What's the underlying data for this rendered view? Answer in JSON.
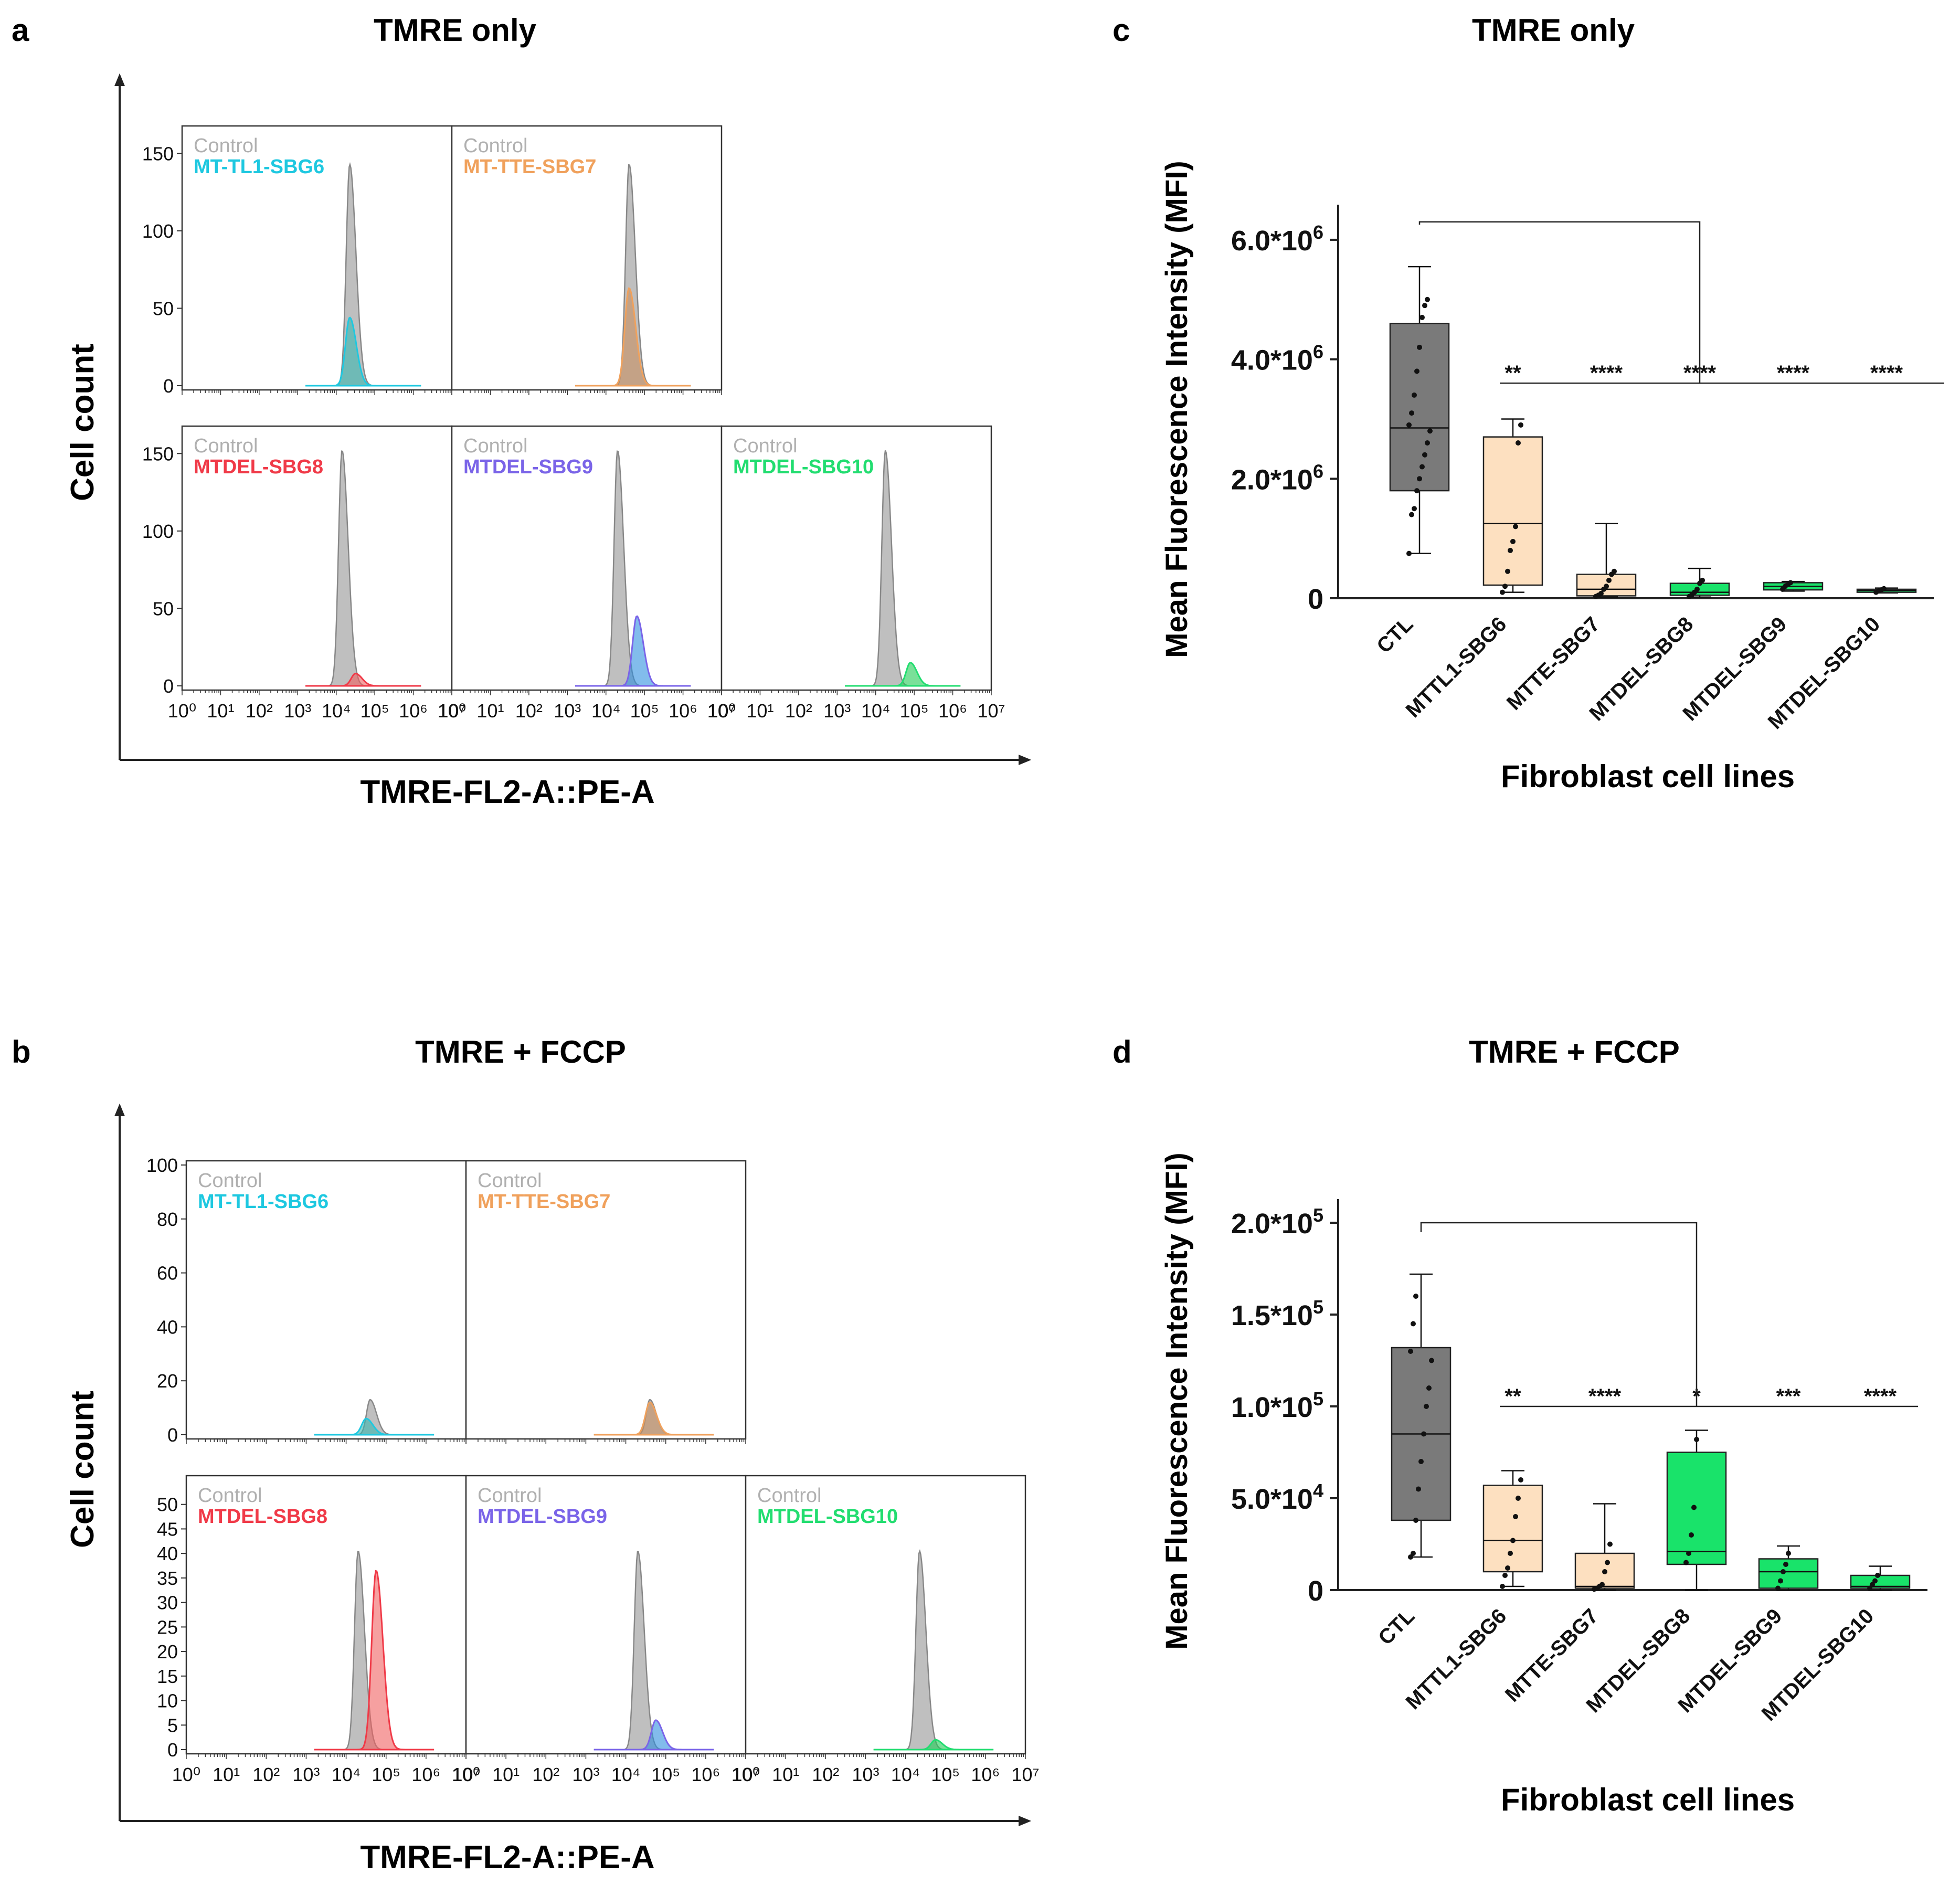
{
  "figure": {
    "panel_a": {
      "letter": "a",
      "title": "TMRE only"
    },
    "panel_b": {
      "letter": "b",
      "title": "TMRE + FCCP"
    },
    "panel_c": {
      "letter": "c",
      "title": "TMRE only"
    },
    "panel_d": {
      "letter": "d",
      "title": "TMRE + FCCP"
    },
    "hist_ylabel": "Cell count",
    "hist_xlabel": "TMRE-FL2-A::PE-A",
    "control_label": "Control",
    "box_ylabel": "Mean Fluorescence Intensity (MFI)",
    "box_xlabel": "Fibroblast cell lines"
  },
  "colors": {
    "control": "#a9a9a9",
    "control_line": "#888888",
    "SBG6": "#1ec8e0",
    "SBG7": "#f0a15c",
    "SBG8": "#f03a48",
    "SBG9": "#7a64e8",
    "SBG10": "#22dd70",
    "SBG6_fill": "#3ab8b0",
    "SBG7_fill": "#c89060",
    "SBG8_fill": "#f06060",
    "SBG9_fill": "#2f8fe0",
    "SBG10_fill": "#22cc55",
    "box_ctl": "#7a7a7a",
    "box_peach": "#fde0c0",
    "box_green": "#19e36a"
  },
  "chart_data": [
    {
      "id": "a",
      "type": "area",
      "title": "TMRE only",
      "xlabel": "TMRE-FL2-A::PE-A",
      "ylabel": "Cell count",
      "x_scale": "log",
      "x_ticks": [
        "10⁰",
        "10¹",
        "10²",
        "10³",
        "10⁴",
        "10⁵",
        "10⁶",
        "10⁷"
      ],
      "panels": [
        {
          "name": "MT-TL1-SBG6",
          "color": "SBG6",
          "row": 0,
          "col": 0,
          "ylim": [
            0,
            165
          ],
          "yticks": [
            0,
            50,
            100,
            150
          ],
          "ctl_peak_log": 4.35,
          "ctl_height": 143,
          "sample_peak_log": 4.35,
          "sample_height": 44
        },
        {
          "name": "MT-TTE-SBG7",
          "color": "SBG7",
          "row": 0,
          "col": 1,
          "ylim": [
            0,
            165
          ],
          "yticks": [
            0,
            50,
            100,
            150
          ],
          "ctl_peak_log": 4.6,
          "ctl_height": 143,
          "sample_peak_log": 4.6,
          "sample_height": 63
        },
        {
          "name": "MTDEL-SBG8",
          "color": "SBG8",
          "row": 1,
          "col": 0,
          "ylim": [
            0,
            165
          ],
          "yticks": [
            0,
            50,
            100,
            150
          ],
          "ctl_peak_log": 4.15,
          "ctl_height": 152,
          "sample_peak_log": 4.5,
          "sample_height": 8
        },
        {
          "name": "MTDEL-SBG9",
          "color": "SBG9",
          "row": 1,
          "col": 1,
          "ylim": [
            0,
            165
          ],
          "yticks": [
            0,
            50,
            100,
            150
          ],
          "ctl_peak_log": 4.3,
          "ctl_height": 152,
          "sample_peak_log": 4.8,
          "sample_height": 45
        },
        {
          "name": "MTDEL-SBG10",
          "color": "SBG10",
          "row": 1,
          "col": 2,
          "ylim": [
            0,
            165
          ],
          "yticks": [
            0,
            50,
            100,
            150
          ],
          "ctl_peak_log": 4.25,
          "ctl_height": 152,
          "sample_peak_log": 4.9,
          "sample_height": 15
        }
      ]
    },
    {
      "id": "b",
      "type": "area",
      "title": "TMRE + FCCP",
      "xlabel": "TMRE-FL2-A::PE-A",
      "ylabel": "Cell count",
      "x_scale": "log",
      "x_ticks": [
        "10⁰",
        "10¹",
        "10²",
        "10³",
        "10⁴",
        "10⁵",
        "10⁶",
        "10⁷"
      ],
      "panels": [
        {
          "name": "MT-TL1-SBG6",
          "color": "SBG6",
          "row": 0,
          "col": 0,
          "ylim": [
            0,
            100
          ],
          "yticks": [
            0,
            20,
            40,
            60,
            80,
            100
          ],
          "ctl_peak_log": 4.6,
          "ctl_height": 13,
          "sample_peak_log": 4.5,
          "sample_height": 6
        },
        {
          "name": "MT-TTE-SBG7",
          "color": "SBG7",
          "row": 0,
          "col": 1,
          "ylim": [
            0,
            100
          ],
          "yticks": [
            0,
            20,
            40,
            60,
            80,
            100
          ],
          "ctl_peak_log": 4.6,
          "ctl_height": 13,
          "sample_peak_log": 4.6,
          "sample_height": 12
        },
        {
          "name": "MTDEL-SBG8",
          "color": "SBG8",
          "row": 1,
          "col": 0,
          "ylim": [
            0,
            55
          ],
          "yticks": [
            0,
            5,
            10,
            15,
            20,
            25,
            30,
            35,
            40,
            45,
            50
          ],
          "ctl_peak_log": 4.3,
          "ctl_height": 40.5,
          "sample_peak_log": 4.75,
          "sample_height": 36.5
        },
        {
          "name": "MTDEL-SBG9",
          "color": "SBG9",
          "row": 1,
          "col": 1,
          "ylim": [
            0,
            55
          ],
          "yticks": [
            0,
            5,
            10,
            15,
            20,
            25,
            30,
            35,
            40,
            45,
            50
          ],
          "ctl_peak_log": 4.3,
          "ctl_height": 40.5,
          "sample_peak_log": 4.75,
          "sample_height": 6
        },
        {
          "name": "MTDEL-SBG10",
          "color": "SBG10",
          "row": 1,
          "col": 2,
          "ylim": [
            0,
            55
          ],
          "yticks": [
            0,
            5,
            10,
            15,
            20,
            25,
            30,
            35,
            40,
            45,
            50
          ],
          "ctl_peak_log": 4.35,
          "ctl_height": 40.5,
          "sample_peak_log": 4.75,
          "sample_height": 2
        }
      ]
    },
    {
      "id": "c",
      "type": "box",
      "title": "TMRE only",
      "ylabel": "Mean Fluorescence Intensity (MFI)",
      "xlabel": "Fibroblast cell lines",
      "ylim": [
        0,
        6500000
      ],
      "yticks": [
        {
          "v": 0,
          "base": "0",
          "exp": ""
        },
        {
          "v": 2000000,
          "base": "2.0*10",
          "exp": "6"
        },
        {
          "v": 4000000,
          "base": "4.0*10",
          "exp": "6"
        },
        {
          "v": 6000000,
          "base": "6.0*10",
          "exp": "6"
        }
      ],
      "categories": [
        "CTL",
        "MTTL1-SBG6",
        "MTTE-SBG7",
        "MTDEL-SBG8",
        "MTDEL-SBG9",
        "MTDEL-SBG10"
      ],
      "box_colors": [
        "box_ctl",
        "box_peach",
        "box_peach",
        "box_green",
        "box_green",
        "box_green"
      ],
      "boxes": [
        {
          "min": 750000,
          "q1": 1800000,
          "median": 2850000,
          "q3": 4600000,
          "max": 5550000
        },
        {
          "min": 100000,
          "q1": 220000,
          "median": 1250000,
          "q3": 2700000,
          "max": 3000000
        },
        {
          "min": 20000,
          "q1": 40000,
          "median": 150000,
          "q3": 400000,
          "max": 1250000
        },
        {
          "min": 20000,
          "q1": 50000,
          "median": 100000,
          "q3": 250000,
          "max": 500000
        },
        {
          "min": 120000,
          "q1": 140000,
          "median": 200000,
          "q3": 260000,
          "max": 280000
        },
        {
          "min": 90000,
          "q1": 100000,
          "median": 130000,
          "q3": 150000,
          "max": 170000
        }
      ],
      "points": [
        [
          750000,
          1400000,
          1500000,
          1800000,
          2000000,
          2200000,
          2400000,
          2600000,
          2800000,
          2900000,
          3100000,
          3400000,
          3800000,
          4200000,
          4700000,
          4900000,
          5000000
        ],
        [
          100000,
          200000,
          450000,
          800000,
          950000,
          1200000,
          2600000,
          2900000
        ],
        [
          30000,
          50000,
          80000,
          150000,
          200000,
          300000,
          400000,
          450000
        ],
        [
          30000,
          60000,
          100000,
          150000,
          250000,
          300000
        ],
        [
          150000,
          200000,
          230000,
          260000
        ],
        [
          100000,
          120000,
          140000,
          160000
        ]
      ],
      "bracket_top": 6300000,
      "bracket_bar": 3600000,
      "significance": [
        "",
        "**",
        "****",
        "****",
        "****",
        "****"
      ]
    },
    {
      "id": "d",
      "type": "box",
      "title": "TMRE + FCCP",
      "ylabel": "Mean Fluorescence Intensity (MFI)",
      "xlabel": "Fibroblast cell lines",
      "ylim": [
        0,
        210000
      ],
      "yticks": [
        {
          "v": 0,
          "base": "0",
          "exp": ""
        },
        {
          "v": 50000,
          "base": "5.0*10",
          "exp": "4"
        },
        {
          "v": 100000,
          "base": "1.0*10",
          "exp": "5"
        },
        {
          "v": 150000,
          "base": "1.5*10",
          "exp": "5"
        },
        {
          "v": 200000,
          "base": "2.0*10",
          "exp": "5"
        }
      ],
      "categories": [
        "CTL",
        "MTTL1-SBG6",
        "MTTE-SBG7",
        "MTDEL-SBG8",
        "MTDEL-SBG9",
        "MTDEL-SBG10"
      ],
      "box_colors": [
        "box_ctl",
        "box_peach",
        "box_peach",
        "box_green",
        "box_green",
        "box_green"
      ],
      "boxes": [
        {
          "min": 18000,
          "q1": 38000,
          "median": 85000,
          "q3": 132000,
          "max": 172000
        },
        {
          "min": 2000,
          "q1": 10000,
          "median": 27000,
          "q3": 57000,
          "max": 65000
        },
        {
          "min": 0,
          "q1": 1000,
          "median": 2000,
          "q3": 20000,
          "max": 47000
        },
        {
          "min": 0,
          "q1": 14000,
          "median": 21000,
          "q3": 75000,
          "max": 87000
        },
        {
          "min": 0,
          "q1": 1000,
          "median": 10000,
          "q3": 17000,
          "max": 24000
        },
        {
          "min": 0,
          "q1": 1000,
          "median": 2000,
          "q3": 8000,
          "max": 13000
        }
      ],
      "points": [
        [
          18000,
          20000,
          38000,
          55000,
          70000,
          85000,
          100000,
          110000,
          125000,
          130000,
          145000,
          160000
        ],
        [
          2000,
          8000,
          12000,
          20000,
          27000,
          40000,
          50000,
          60000
        ],
        [
          500,
          1000,
          2000,
          3000,
          10000,
          15000,
          25000
        ],
        [
          15000,
          20000,
          30000,
          45000,
          82000
        ],
        [
          1000,
          5000,
          10000,
          14000,
          20000
        ],
        [
          1000,
          3000,
          5000,
          8000
        ]
      ],
      "bracket_top": 200000,
      "bracket_bar": 100000,
      "significance": [
        "",
        "**",
        "****",
        "*",
        "***",
        "****"
      ]
    }
  ]
}
